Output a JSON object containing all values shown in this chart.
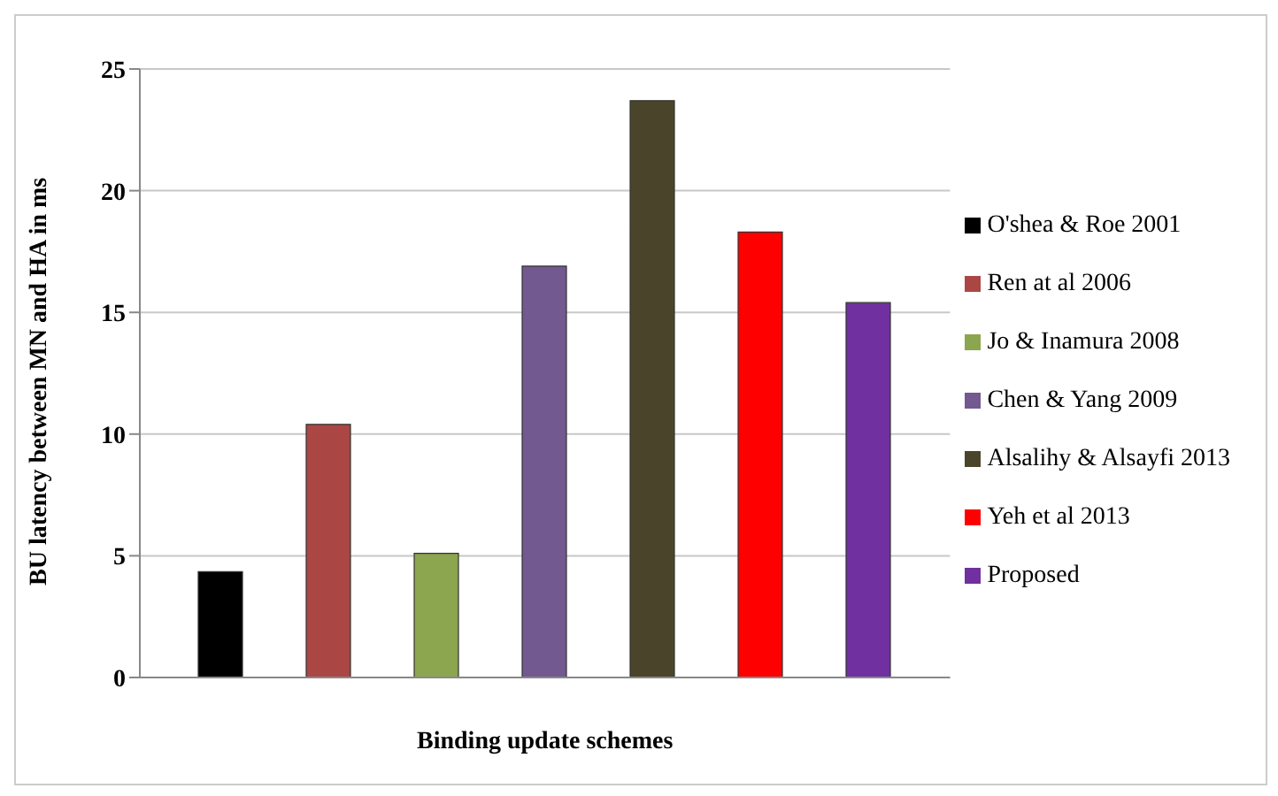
{
  "chart_data": {
    "type": "bar",
    "xlabel": "Binding update schemes",
    "ylabel": "BU latency between MN and HA in ms",
    "categories": [
      null
    ],
    "series": [
      {
        "name": "O'shea & Roe 2001",
        "color": "#000000",
        "values": [
          4.35
        ]
      },
      {
        "name": "Ren at al 2006",
        "color": "#aa4744",
        "values": [
          10.4
        ]
      },
      {
        "name": "Jo & Inamura 2008",
        "color": "#8ba64e",
        "values": [
          5.1
        ]
      },
      {
        "name": "Chen & Yang 2009",
        "color": "#725990",
        "values": [
          16.9
        ]
      },
      {
        "name": "Alsalihy & Alsayfi 2013",
        "color": "#4a452a",
        "values": [
          23.7
        ]
      },
      {
        "name": "Yeh et al 2013",
        "color": "#ff0000",
        "values": [
          18.3
        ]
      },
      {
        "name": "Proposed",
        "color": "#7030a0",
        "values": [
          15.4
        ]
      }
    ],
    "ylim": [
      0,
      25
    ],
    "yticks": [
      0,
      5,
      10,
      15,
      20,
      25
    ],
    "grid": "y",
    "legend": "right"
  }
}
